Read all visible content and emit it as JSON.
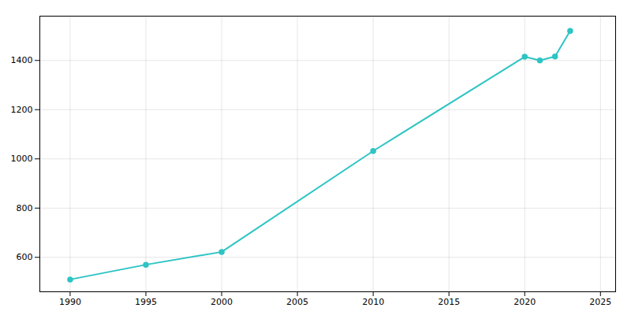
{
  "chart_data": {
    "type": "line",
    "x": [
      1990,
      1995,
      2000,
      2010,
      2020,
      2021,
      2022,
      2023
    ],
    "values": [
      510,
      570,
      622,
      1032,
      1415,
      1400,
      1416,
      1520
    ],
    "color": "#2EC4C4",
    "marker": "circle",
    "xlim": [
      1988,
      2026
    ],
    "ylim": [
      460,
      1580
    ],
    "xticks": [
      1990,
      1995,
      2000,
      2005,
      2010,
      2015,
      2020,
      2025
    ],
    "yticks": [
      600,
      800,
      1000,
      1200,
      1400
    ],
    "grid": true
  }
}
